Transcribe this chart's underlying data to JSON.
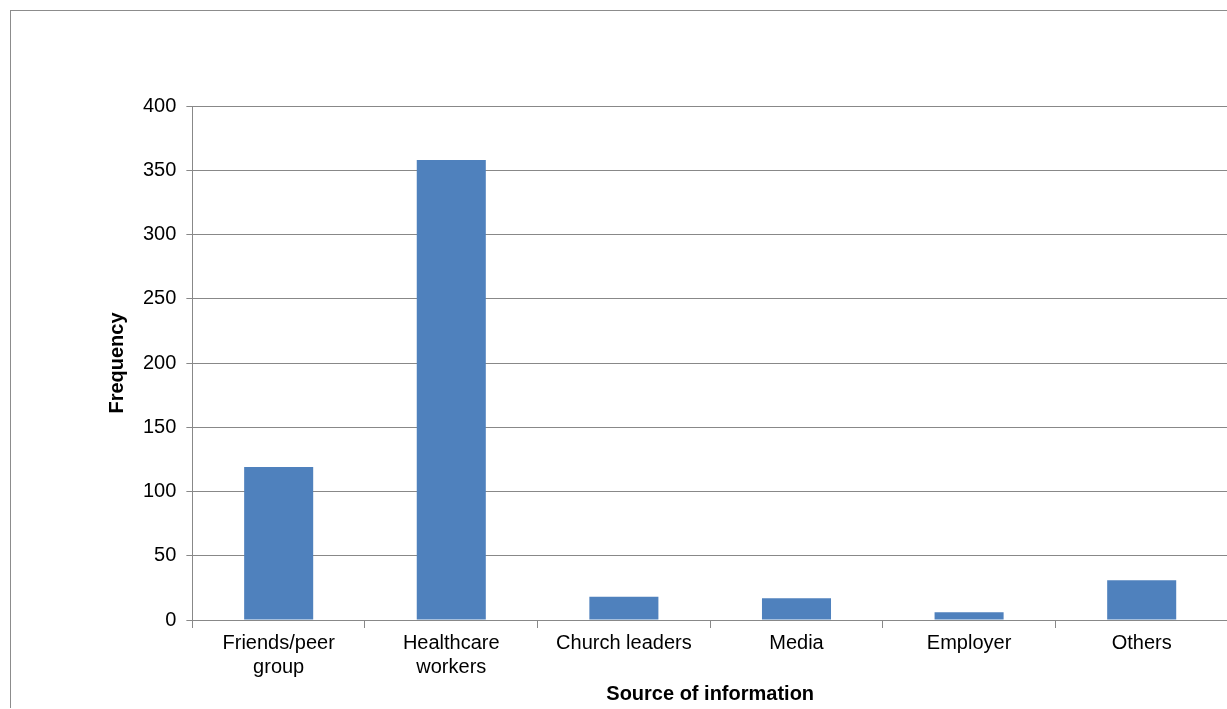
{
  "chart_data": {
    "type": "bar",
    "xlabel": "Source of information",
    "ylabel": "Frequency",
    "categories": [
      "Friends/peer group",
      "Healthcare workers",
      "Church leaders",
      "Media",
      "Employer",
      "Others"
    ],
    "values": [
      119,
      358,
      18,
      17,
      6,
      31
    ],
    "color": "#4f81bd",
    "ylim": [
      0,
      400
    ],
    "yticks": [
      0,
      50,
      100,
      150,
      200,
      250,
      300,
      350,
      400
    ],
    "grid": "y",
    "legend": false
  }
}
